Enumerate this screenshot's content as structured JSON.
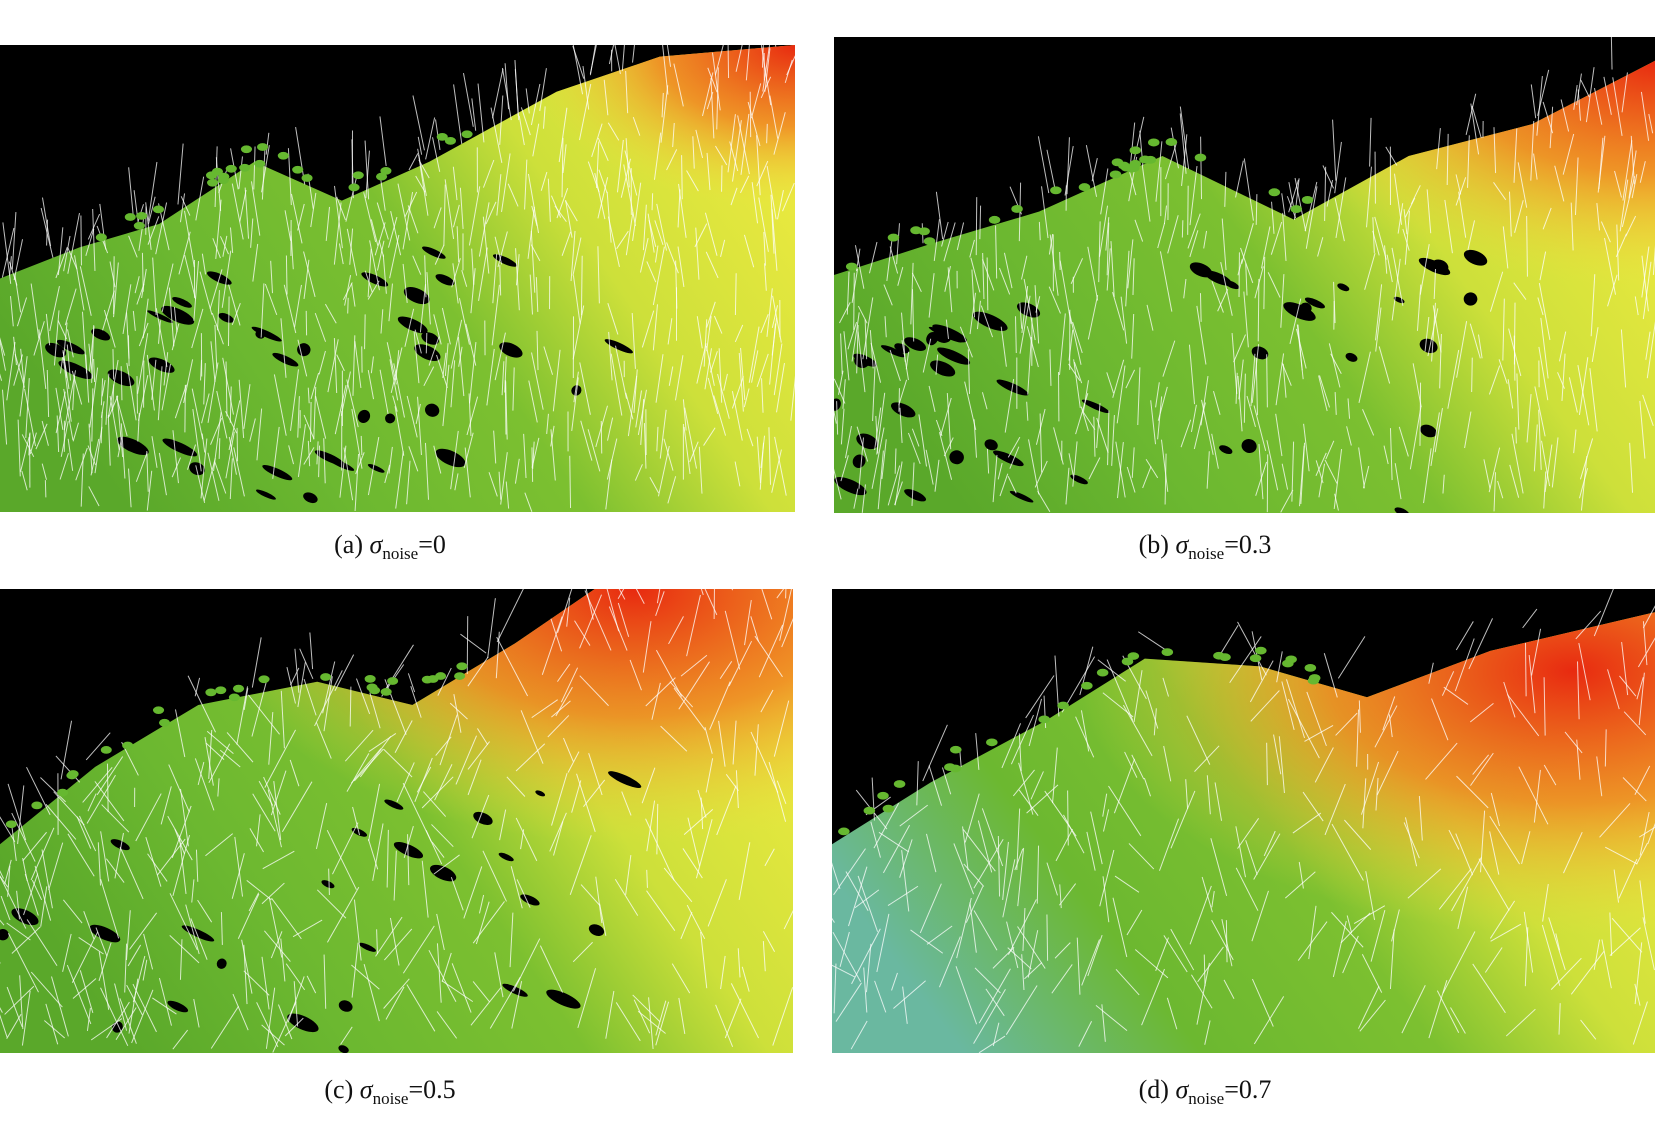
{
  "panels": [
    {
      "label": "(a)",
      "symbol": "σ",
      "subscript": "noise",
      "value": "=0"
    },
    {
      "label": "(b)",
      "symbol": "σ",
      "subscript": "noise",
      "value": "=0.3"
    },
    {
      "label": "(c)",
      "symbol": "σ",
      "subscript": "noise",
      "value": "=0.5"
    },
    {
      "label": "(d)",
      "symbol": "σ",
      "subscript": "noise",
      "value": "=0.7"
    }
  ]
}
